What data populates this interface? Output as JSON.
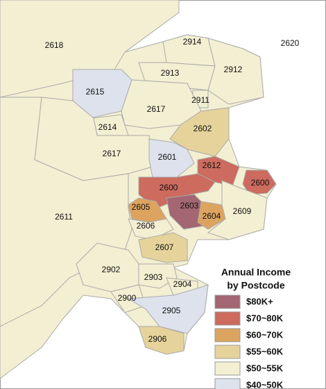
{
  "map": {
    "regions": [
      {
        "label": "2618",
        "color": "#f3efd2"
      },
      {
        "label": "2914",
        "color": "#f3efd2"
      },
      {
        "label": "2620"
      },
      {
        "label": "2913",
        "color": "#f3efd2"
      },
      {
        "label": "2912",
        "color": "#f3efd2"
      },
      {
        "label": "2615",
        "color": "#dde2ec"
      },
      {
        "label": "2911",
        "color": "#f3efd2"
      },
      {
        "label": "2617",
        "color": "#f3efd2"
      },
      {
        "label": "2602",
        "color": "#e6d39b"
      },
      {
        "label": "2614",
        "color": "#f3efd2"
      },
      {
        "label": "2617",
        "color": "#f3efd2"
      },
      {
        "label": "2601",
        "color": "#dde2ec"
      },
      {
        "label": "2612",
        "color": "#cc6b5e"
      },
      {
        "label": "2600",
        "color": "#cc6b5e"
      },
      {
        "label": "2600",
        "color": "#cc6b5e"
      },
      {
        "label": "2605",
        "color": "#dca45f"
      },
      {
        "label": "2603",
        "color": "#a36672"
      },
      {
        "label": "2604",
        "color": "#dca45f"
      },
      {
        "label": "2609",
        "color": "#f3efd2"
      },
      {
        "label": "2611",
        "color": "#f3efd2"
      },
      {
        "label": "2606",
        "color": "#f3efd2"
      },
      {
        "label": "2607",
        "color": "#e6d39b"
      },
      {
        "label": "2902",
        "color": "#f3efd2"
      },
      {
        "label": "2903",
        "color": "#f3efd2"
      },
      {
        "label": "2904",
        "color": "#f3efd2"
      },
      {
        "label": "2900",
        "color": "#f3efd2"
      },
      {
        "label": "2905",
        "color": "#dde2ec"
      },
      {
        "label": "2906",
        "color": "#e6d39b"
      }
    ],
    "legend": {
      "title": [
        "Annual Income",
        "by Postcode"
      ],
      "items": [
        {
          "label": "$80K+",
          "color": "#a36672"
        },
        {
          "label": "$70~80K",
          "color": "#cc6b5e"
        },
        {
          "label": "$60~70K",
          "color": "#dca45f"
        },
        {
          "label": "$55~60K",
          "color": "#e6d39b"
        },
        {
          "label": "$50~55K",
          "color": "#f3efd2"
        },
        {
          "label": "$40~50K",
          "color": "#dde2ec"
        }
      ]
    }
  }
}
